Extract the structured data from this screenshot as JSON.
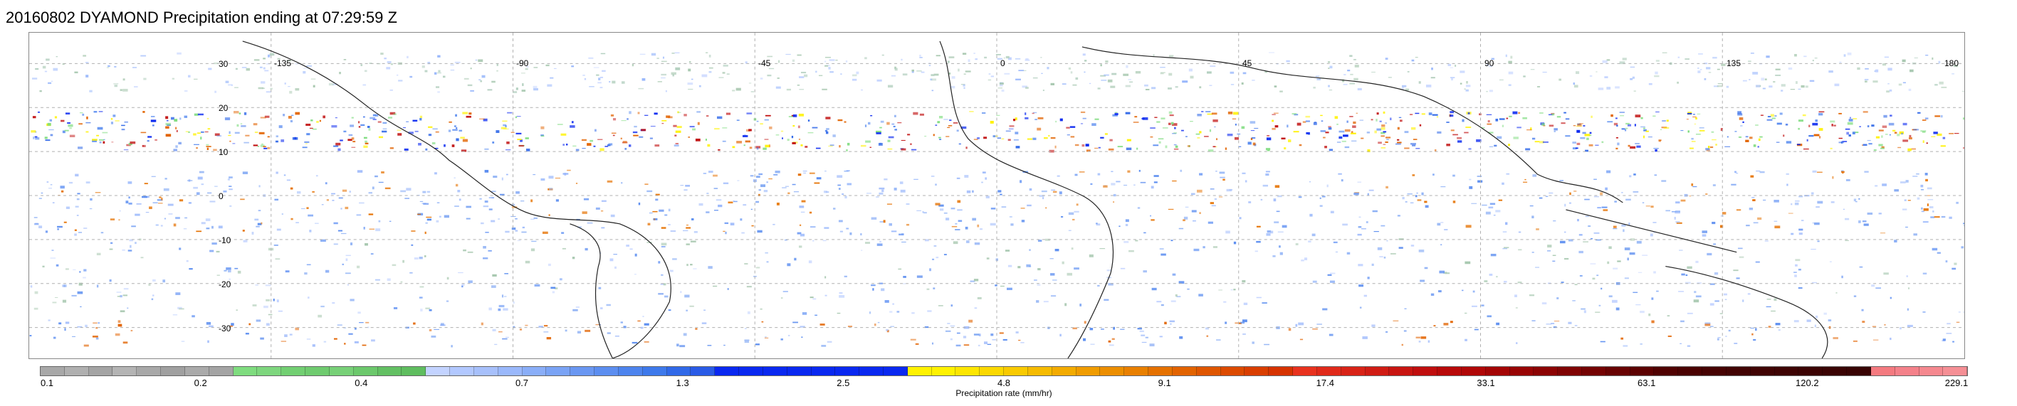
{
  "title": "20160802 DYAMOND Precipitation ending at 07:29:59 Z",
  "map": {
    "lon_range": [
      -180,
      180
    ],
    "lat_range": [
      -37,
      37
    ],
    "lon_labels": [
      {
        "lon": -135,
        "text": "-135"
      },
      {
        "lon": -90,
        "text": "-90"
      },
      {
        "lon": -45,
        "text": "-45"
      },
      {
        "lon": 0,
        "text": "0"
      },
      {
        "lon": 45,
        "text": "45"
      },
      {
        "lon": 90,
        "text": "90"
      },
      {
        "lon": 135,
        "text": "135"
      },
      {
        "lon": 180,
        "text": "180"
      }
    ],
    "lat_labels": [
      {
        "lat": 30,
        "text": "30"
      },
      {
        "lat": 20,
        "text": "20"
      },
      {
        "lat": 10,
        "text": "10"
      },
      {
        "lat": 0,
        "text": "0"
      },
      {
        "lat": -10,
        "text": "-10"
      },
      {
        "lat": -20,
        "text": "-20"
      },
      {
        "lat": -30,
        "text": "-30"
      }
    ],
    "grid_lons": [
      -135,
      -90,
      -45,
      0,
      45,
      90,
      135
    ],
    "grid_lats": [
      -30,
      -20,
      -10,
      0,
      10,
      20,
      30
    ]
  },
  "colorbar": {
    "label": "Precipitation rate (mm/hr)",
    "ticks": [
      "0.1",
      "0.2",
      "0.4",
      "0.7",
      "1.3",
      "2.5",
      "4.8",
      "9.1",
      "17.4",
      "33.1",
      "63.1",
      "120.2",
      "229.1"
    ],
    "colors": [
      "#a8a8a8",
      "#b0b0b0",
      "#a4a4a4",
      "#b4b4b4",
      "#a8a8a8",
      "#a0a0a0",
      "#aaaaaa",
      "#a4a4a4",
      "#7fdc7f",
      "#7ed67e",
      "#72cf72",
      "#6fcb6f",
      "#77d077",
      "#6cc86c",
      "#63c063",
      "#5fbd5f",
      "#c3d3ff",
      "#b2c8ff",
      "#a7c0fb",
      "#9ab8fb",
      "#8aaef8",
      "#7aa3f5",
      "#6a97f2",
      "#5c8ef0",
      "#4d84ee",
      "#3e79eb",
      "#3169e8",
      "#2a5be6",
      "#0a28f0",
      "#0a28f0",
      "#0a28f0",
      "#0a28f0",
      "#0a28f0",
      "#0a28f0",
      "#0a28f0",
      "#0a28f0",
      "#fff200",
      "#fff200",
      "#fde600",
      "#fbd800",
      "#f9ca00",
      "#f6bb00",
      "#f3ab00",
      "#f09c00",
      "#ec8e00",
      "#e98000",
      "#e57100",
      "#e26300",
      "#df5600",
      "#dc4a00",
      "#d93e00",
      "#d63300",
      "#e8321e",
      "#e02a1a",
      "#d82317",
      "#d01c14",
      "#c81511",
      "#c00e0e",
      "#b80a0a",
      "#b00707",
      "#a40505",
      "#980404",
      "#8c0303",
      "#800303",
      "#740202",
      "#680202",
      "#5c0101",
      "#500101",
      "#4a0101",
      "#460202",
      "#420303",
      "#400303",
      "#3e0303",
      "#3c0303",
      "#3a0303",
      "#380303",
      "#f47a80",
      "#f4818a",
      "#f5888f",
      "#f58f95"
    ]
  }
}
